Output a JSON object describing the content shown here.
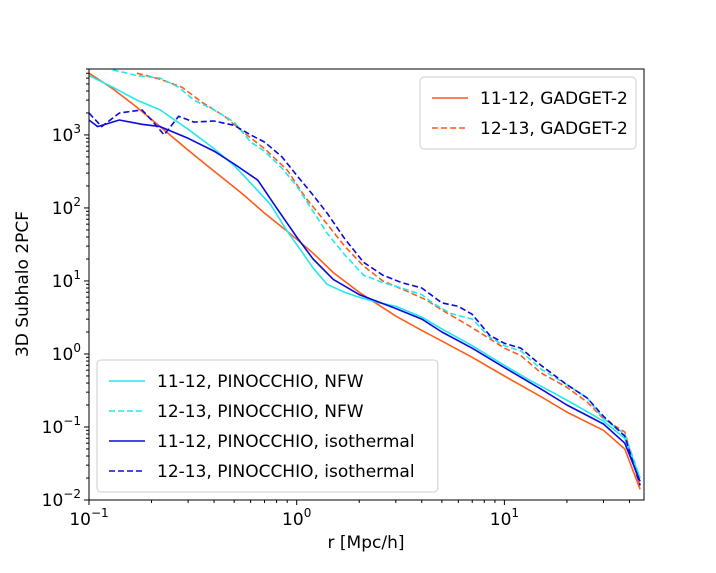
{
  "chart_data": {
    "type": "line",
    "title": "",
    "xlabel": "r [Mpc/h]",
    "ylabel": "3D Subhalo 2PCF",
    "xscale": "log",
    "yscale": "log",
    "xlim": [
      0.1,
      47
    ],
    "ylim": [
      0.01,
      8000
    ],
    "grid": false,
    "x_ticks": [
      {
        "value": 0.1,
        "base": "10",
        "exp": "−1"
      },
      {
        "value": 1,
        "base": "10",
        "exp": "0"
      },
      {
        "value": 10,
        "base": "10",
        "exp": "1"
      }
    ],
    "y_ticks": [
      {
        "value": 0.01,
        "base": "10",
        "exp": "−2"
      },
      {
        "value": 0.1,
        "base": "10",
        "exp": "−1"
      },
      {
        "value": 1,
        "base": "10",
        "exp": "0"
      },
      {
        "value": 10,
        "base": "10",
        "exp": "1"
      },
      {
        "value": 100,
        "base": "10",
        "exp": "2"
      },
      {
        "value": 1000,
        "base": "10",
        "exp": "3"
      }
    ],
    "legends": [
      {
        "placement": "upper right",
        "entries": [
          0,
          1
        ]
      },
      {
        "placement": "lower left",
        "entries": [
          2,
          3,
          4,
          5
        ]
      }
    ],
    "series": [
      {
        "name": "11-12, GADGET-2",
        "color": "#ff5c1a",
        "dash": "solid",
        "x": [
          0.1,
          0.13,
          0.17,
          0.22,
          0.3,
          0.4,
          0.55,
          0.7,
          0.9,
          1.2,
          1.5,
          2,
          3,
          4,
          5,
          7,
          10,
          15,
          20,
          30,
          38,
          45
        ],
        "y": [
          7000,
          4300,
          2400,
          1300,
          620,
          320,
          155,
          85,
          48,
          24,
          13,
          7,
          3.3,
          2.1,
          1.5,
          0.9,
          0.5,
          0.26,
          0.16,
          0.09,
          0.05,
          0.014
        ]
      },
      {
        "name": "12-13, GADGET-2",
        "color": "#ff5c1a",
        "dash": "dashed",
        "x": [
          0.17,
          0.22,
          0.28,
          0.35,
          0.45,
          0.55,
          0.7,
          0.9,
          1.1,
          1.4,
          1.7,
          2.1,
          2.6,
          3.3,
          4.2,
          5,
          6.5,
          8,
          10,
          12,
          15,
          20,
          25,
          30,
          38,
          45
        ],
        "y": [
          7000,
          5800,
          4500,
          2800,
          1800,
          1100,
          650,
          330,
          140,
          60,
          30,
          16,
          10,
          7.5,
          5.5,
          4,
          2.6,
          1.8,
          1.2,
          0.95,
          0.55,
          0.35,
          0.22,
          0.13,
          0.085,
          0.015
        ]
      },
      {
        "name": "11-12, PINOCCHIO, NFW",
        "color": "#21e8ee",
        "dash": "solid",
        "x": [
          0.1,
          0.13,
          0.17,
          0.22,
          0.3,
          0.4,
          0.5,
          0.6,
          0.75,
          0.9,
          1.05,
          1.2,
          1.4,
          1.7,
          2,
          2.5,
          3,
          4,
          5,
          7,
          10,
          13,
          17,
          22,
          30,
          38,
          45
        ],
        "y": [
          6500,
          4500,
          3000,
          2200,
          1200,
          650,
          380,
          220,
          110,
          48,
          26,
          15,
          9,
          7,
          6,
          5,
          4.5,
          3.2,
          2.2,
          1.3,
          0.7,
          0.45,
          0.3,
          0.2,
          0.12,
          0.07,
          0.02
        ]
      },
      {
        "name": "12-13, PINOCCHIO, NFW",
        "color": "#21e8ee",
        "dash": "dashed",
        "x": [
          0.13,
          0.17,
          0.22,
          0.27,
          0.32,
          0.4,
          0.5,
          0.6,
          0.7,
          0.85,
          1,
          1.2,
          1.4,
          1.7,
          2.1,
          2.6,
          3.2,
          4,
          4.5,
          5.5,
          7,
          8.5,
          10,
          12,
          15,
          20,
          25,
          30,
          38,
          45
        ],
        "y": [
          7800,
          6500,
          6000,
          4500,
          3000,
          2200,
          1500,
          800,
          600,
          350,
          200,
          90,
          45,
          23,
          12,
          9.5,
          8,
          6.5,
          5,
          3.6,
          3,
          1.7,
          1.3,
          1.1,
          0.62,
          0.38,
          0.25,
          0.13,
          0.08,
          0.02
        ]
      },
      {
        "name": "11-12, PINOCCHIO, isothermal",
        "color": "#0a0adc",
        "dash": "solid",
        "x": [
          0.1,
          0.11,
          0.14,
          0.18,
          0.22,
          0.3,
          0.4,
          0.5,
          0.65,
          0.8,
          1,
          1.2,
          1.5,
          2,
          3,
          4,
          5,
          7,
          10,
          15,
          20,
          30,
          38,
          45
        ],
        "y": [
          1600,
          1300,
          1600,
          1400,
          1300,
          900,
          600,
          400,
          240,
          100,
          40,
          20,
          10.5,
          6.5,
          4.2,
          3,
          2,
          1.2,
          0.65,
          0.33,
          0.2,
          0.11,
          0.06,
          0.018
        ]
      },
      {
        "name": "12-13, PINOCCHIO, isothermal",
        "color": "#0a0adc",
        "dash": "dashed",
        "x": [
          0.1,
          0.115,
          0.14,
          0.18,
          0.2,
          0.23,
          0.27,
          0.32,
          0.4,
          0.5,
          0.6,
          0.7,
          0.85,
          1,
          1.2,
          1.4,
          1.7,
          2.1,
          2.6,
          3.2,
          4,
          5,
          6,
          7,
          8.5,
          10,
          12,
          15,
          20,
          25,
          30,
          38,
          45
        ],
        "y": [
          2000,
          1300,
          2000,
          2200,
          1600,
          1000,
          1800,
          1500,
          1550,
          1350,
          1000,
          800,
          500,
          280,
          150,
          85,
          38,
          18,
          12,
          9.5,
          8,
          5,
          4.5,
          3.5,
          1.8,
          1.4,
          1.2,
          0.7,
          0.38,
          0.25,
          0.14,
          0.075,
          0.016
        ]
      }
    ]
  }
}
